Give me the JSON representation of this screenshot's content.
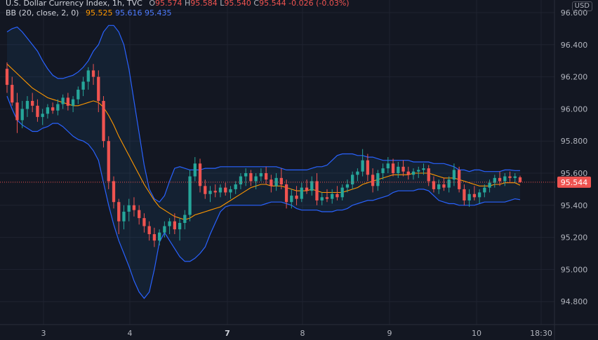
{
  "legend": {
    "symbol": "U.S. Dollar Currency Index, 1h, TVC",
    "open_label": "O",
    "open": "95.574",
    "high_label": "H",
    "high": "95.584",
    "low_label": "L",
    "low": "95.540",
    "close_label": "C",
    "close": "95.544",
    "change": "-0.026 (-0.03%)",
    "bb_label": "BB (20, close, 2, 0)",
    "bb_basis": "95.525",
    "bb_upper": "95.616",
    "bb_lower": "95.435"
  },
  "currency": "USD",
  "colors": {
    "background": "#131722",
    "up": "#26a69a",
    "down": "#ef5350",
    "basis": "#ff9800",
    "bands": "#2962ff",
    "fill": "rgba(33,150,243,0.08)",
    "grid": "#1f2330",
    "price_line": "#ef5350"
  },
  "chart_data": {
    "type": "candlestick",
    "ylim": [
      94.7,
      96.65
    ],
    "y_ticks": [
      "96.600",
      "96.400",
      "96.200",
      "96.000",
      "95.800",
      "95.600",
      "95.400",
      "95.200",
      "95.000",
      "94.800"
    ],
    "x_ticks": [
      "3",
      "4",
      "7",
      "8",
      "9",
      "10",
      "18:30"
    ],
    "x_tick_bold": [
      "7"
    ],
    "current_price": "95.544",
    "ohlc": [
      {
        "o": 96.25,
        "h": 96.29,
        "l": 96.1,
        "c": 96.15
      },
      {
        "o": 96.15,
        "h": 96.2,
        "l": 96.02,
        "c": 96.04
      },
      {
        "o": 96.04,
        "h": 96.1,
        "l": 95.85,
        "c": 95.93
      },
      {
        "o": 95.93,
        "h": 96.05,
        "l": 95.88,
        "c": 96.0
      },
      {
        "o": 96.0,
        "h": 96.08,
        "l": 95.95,
        "c": 96.05
      },
      {
        "o": 96.05,
        "h": 96.1,
        "l": 95.98,
        "c": 96.02
      },
      {
        "o": 96.02,
        "h": 96.06,
        "l": 95.92,
        "c": 95.95
      },
      {
        "o": 95.95,
        "h": 96.0,
        "l": 95.9,
        "c": 95.97
      },
      {
        "o": 95.97,
        "h": 96.03,
        "l": 95.94,
        "c": 96.01
      },
      {
        "o": 96.01,
        "h": 96.04,
        "l": 95.97,
        "c": 95.99
      },
      {
        "o": 95.99,
        "h": 96.06,
        "l": 95.96,
        "c": 96.03
      },
      {
        "o": 96.03,
        "h": 96.09,
        "l": 96.0,
        "c": 96.07
      },
      {
        "o": 96.07,
        "h": 96.1,
        "l": 95.99,
        "c": 96.02
      },
      {
        "o": 96.02,
        "h": 96.08,
        "l": 95.98,
        "c": 96.06
      },
      {
        "o": 96.06,
        "h": 96.14,
        "l": 96.03,
        "c": 96.12
      },
      {
        "o": 96.12,
        "h": 96.2,
        "l": 96.08,
        "c": 96.17
      },
      {
        "o": 96.17,
        "h": 96.26,
        "l": 96.12,
        "c": 96.24
      },
      {
        "o": 96.24,
        "h": 96.28,
        "l": 96.15,
        "c": 96.2
      },
      {
        "o": 96.2,
        "h": 96.24,
        "l": 95.98,
        "c": 96.05
      },
      {
        "o": 96.05,
        "h": 96.08,
        "l": 95.76,
        "c": 95.8
      },
      {
        "o": 95.8,
        "h": 95.83,
        "l": 95.5,
        "c": 95.55
      },
      {
        "o": 95.55,
        "h": 95.58,
        "l": 95.38,
        "c": 95.42
      },
      {
        "o": 95.42,
        "h": 95.44,
        "l": 95.22,
        "c": 95.3
      },
      {
        "o": 95.3,
        "h": 95.4,
        "l": 95.25,
        "c": 95.36
      },
      {
        "o": 95.36,
        "h": 95.44,
        "l": 95.3,
        "c": 95.4
      },
      {
        "o": 95.4,
        "h": 95.45,
        "l": 95.33,
        "c": 95.37
      },
      {
        "o": 95.37,
        "h": 95.4,
        "l": 95.28,
        "c": 95.32
      },
      {
        "o": 95.32,
        "h": 95.35,
        "l": 95.23,
        "c": 95.27
      },
      {
        "o": 95.27,
        "h": 95.3,
        "l": 95.18,
        "c": 95.22
      },
      {
        "o": 95.22,
        "h": 95.26,
        "l": 95.14,
        "c": 95.18
      },
      {
        "o": 95.18,
        "h": 95.25,
        "l": 95.15,
        "c": 95.23
      },
      {
        "o": 95.23,
        "h": 95.3,
        "l": 95.2,
        "c": 95.27
      },
      {
        "o": 95.27,
        "h": 95.32,
        "l": 95.22,
        "c": 95.3
      },
      {
        "o": 95.3,
        "h": 95.35,
        "l": 95.22,
        "c": 95.25
      },
      {
        "o": 95.25,
        "h": 95.32,
        "l": 95.18,
        "c": 95.29
      },
      {
        "o": 95.29,
        "h": 95.37,
        "l": 95.25,
        "c": 95.34
      },
      {
        "o": 95.34,
        "h": 95.62,
        "l": 95.3,
        "c": 95.58
      },
      {
        "o": 95.58,
        "h": 95.7,
        "l": 95.55,
        "c": 95.66
      },
      {
        "o": 95.66,
        "h": 95.69,
        "l": 95.48,
        "c": 95.52
      },
      {
        "o": 95.52,
        "h": 95.56,
        "l": 95.44,
        "c": 95.47
      },
      {
        "o": 95.47,
        "h": 95.52,
        "l": 95.42,
        "c": 95.49
      },
      {
        "o": 95.49,
        "h": 95.53,
        "l": 95.45,
        "c": 95.48
      },
      {
        "o": 95.48,
        "h": 95.53,
        "l": 95.45,
        "c": 95.51
      },
      {
        "o": 95.51,
        "h": 95.54,
        "l": 95.46,
        "c": 95.48
      },
      {
        "o": 95.48,
        "h": 95.52,
        "l": 95.44,
        "c": 95.5
      },
      {
        "o": 95.5,
        "h": 95.55,
        "l": 95.47,
        "c": 95.53
      },
      {
        "o": 95.53,
        "h": 95.6,
        "l": 95.5,
        "c": 95.58
      },
      {
        "o": 95.58,
        "h": 95.63,
        "l": 95.52,
        "c": 95.6
      },
      {
        "o": 95.6,
        "h": 95.62,
        "l": 95.52,
        "c": 95.55
      },
      {
        "o": 95.55,
        "h": 95.6,
        "l": 95.5,
        "c": 95.58
      },
      {
        "o": 95.58,
        "h": 95.63,
        "l": 95.55,
        "c": 95.6
      },
      {
        "o": 95.6,
        "h": 95.64,
        "l": 95.53,
        "c": 95.56
      },
      {
        "o": 95.56,
        "h": 95.59,
        "l": 95.48,
        "c": 95.52
      },
      {
        "o": 95.52,
        "h": 95.6,
        "l": 95.49,
        "c": 95.57
      },
      {
        "o": 95.57,
        "h": 95.63,
        "l": 95.5,
        "c": 95.53
      },
      {
        "o": 95.53,
        "h": 95.56,
        "l": 95.38,
        "c": 95.42
      },
      {
        "o": 95.42,
        "h": 95.5,
        "l": 95.38,
        "c": 95.46
      },
      {
        "o": 95.46,
        "h": 95.52,
        "l": 95.4,
        "c": 95.44
      },
      {
        "o": 95.44,
        "h": 95.54,
        "l": 95.42,
        "c": 95.51
      },
      {
        "o": 95.51,
        "h": 95.56,
        "l": 95.47,
        "c": 95.49
      },
      {
        "o": 95.49,
        "h": 95.58,
        "l": 95.46,
        "c": 95.55
      },
      {
        "o": 95.55,
        "h": 95.6,
        "l": 95.4,
        "c": 95.43
      },
      {
        "o": 95.43,
        "h": 95.48,
        "l": 95.4,
        "c": 95.45
      },
      {
        "o": 95.45,
        "h": 95.5,
        "l": 95.42,
        "c": 95.44
      },
      {
        "o": 95.44,
        "h": 95.5,
        "l": 95.41,
        "c": 95.47
      },
      {
        "o": 95.47,
        "h": 95.52,
        "l": 95.43,
        "c": 95.45
      },
      {
        "o": 95.45,
        "h": 95.53,
        "l": 95.43,
        "c": 95.51
      },
      {
        "o": 95.51,
        "h": 95.56,
        "l": 95.48,
        "c": 95.53
      },
      {
        "o": 95.53,
        "h": 95.61,
        "l": 95.5,
        "c": 95.59
      },
      {
        "o": 95.59,
        "h": 95.63,
        "l": 95.55,
        "c": 95.61
      },
      {
        "o": 95.61,
        "h": 95.75,
        "l": 95.58,
        "c": 95.68
      },
      {
        "o": 95.68,
        "h": 95.72,
        "l": 95.55,
        "c": 95.59
      },
      {
        "o": 95.59,
        "h": 95.63,
        "l": 95.48,
        "c": 95.52
      },
      {
        "o": 95.52,
        "h": 95.62,
        "l": 95.49,
        "c": 95.6
      },
      {
        "o": 95.6,
        "h": 95.66,
        "l": 95.56,
        "c": 95.63
      },
      {
        "o": 95.63,
        "h": 95.7,
        "l": 95.6,
        "c": 95.66
      },
      {
        "o": 95.66,
        "h": 95.69,
        "l": 95.58,
        "c": 95.6
      },
      {
        "o": 95.6,
        "h": 95.67,
        "l": 95.57,
        "c": 95.64
      },
      {
        "o": 95.64,
        "h": 95.68,
        "l": 95.58,
        "c": 95.61
      },
      {
        "o": 95.61,
        "h": 95.64,
        "l": 95.56,
        "c": 95.59
      },
      {
        "o": 95.59,
        "h": 95.63,
        "l": 95.56,
        "c": 95.61
      },
      {
        "o": 95.61,
        "h": 95.64,
        "l": 95.57,
        "c": 95.62
      },
      {
        "o": 95.62,
        "h": 95.66,
        "l": 95.59,
        "c": 95.63
      },
      {
        "o": 95.63,
        "h": 95.65,
        "l": 95.52,
        "c": 95.55
      },
      {
        "o": 95.55,
        "h": 95.58,
        "l": 95.48,
        "c": 95.5
      },
      {
        "o": 95.5,
        "h": 95.56,
        "l": 95.47,
        "c": 95.53
      },
      {
        "o": 95.53,
        "h": 95.57,
        "l": 95.49,
        "c": 95.51
      },
      {
        "o": 95.51,
        "h": 95.58,
        "l": 95.48,
        "c": 95.56
      },
      {
        "o": 95.56,
        "h": 95.66,
        "l": 95.52,
        "c": 95.62
      },
      {
        "o": 95.62,
        "h": 95.64,
        "l": 95.48,
        "c": 95.5
      },
      {
        "o": 95.5,
        "h": 95.53,
        "l": 95.4,
        "c": 95.43
      },
      {
        "o": 95.43,
        "h": 95.5,
        "l": 95.39,
        "c": 95.47
      },
      {
        "o": 95.47,
        "h": 95.52,
        "l": 95.43,
        "c": 95.45
      },
      {
        "o": 95.45,
        "h": 95.5,
        "l": 95.41,
        "c": 95.48
      },
      {
        "o": 95.48,
        "h": 95.53,
        "l": 95.45,
        "c": 95.51
      },
      {
        "o": 95.51,
        "h": 95.56,
        "l": 95.48,
        "c": 95.54
      },
      {
        "o": 95.54,
        "h": 95.59,
        "l": 95.51,
        "c": 95.57
      },
      {
        "o": 95.57,
        "h": 95.61,
        "l": 95.52,
        "c": 95.55
      },
      {
        "o": 95.55,
        "h": 95.6,
        "l": 95.52,
        "c": 95.58
      },
      {
        "o": 95.58,
        "h": 95.61,
        "l": 95.54,
        "c": 95.57
      },
      {
        "o": 95.57,
        "h": 95.6,
        "l": 95.54,
        "c": 95.58
      },
      {
        "o": 95.574,
        "h": 95.584,
        "l": 95.54,
        "c": 95.544
      }
    ],
    "bb_basis": [
      96.28,
      96.25,
      96.22,
      96.19,
      96.16,
      96.13,
      96.11,
      96.09,
      96.07,
      96.06,
      96.05,
      96.04,
      96.03,
      96.02,
      96.02,
      96.03,
      96.04,
      96.05,
      96.04,
      96.01,
      95.96,
      95.9,
      95.83,
      95.77,
      95.71,
      95.65,
      95.59,
      95.53,
      95.48,
      95.43,
      95.39,
      95.37,
      95.35,
      95.33,
      95.32,
      95.31,
      95.32,
      95.34,
      95.35,
      95.36,
      95.37,
      95.38,
      95.39,
      95.41,
      95.43,
      95.45,
      95.47,
      95.49,
      95.51,
      95.52,
      95.53,
      95.53,
      95.52,
      95.52,
      95.52,
      95.51,
      95.5,
      95.49,
      95.49,
      95.49,
      95.5,
      95.49,
      95.48,
      95.48,
      95.48,
      95.48,
      95.48,
      95.49,
      95.5,
      95.51,
      95.53,
      95.54,
      95.55,
      95.56,
      95.57,
      95.58,
      95.59,
      95.59,
      95.59,
      95.59,
      95.6,
      95.6,
      95.6,
      95.6,
      95.59,
      95.58,
      95.57,
      95.57,
      95.57,
      95.56,
      95.55,
      95.54,
      95.53,
      95.52,
      95.52,
      95.52,
      95.53,
      95.53,
      95.54,
      95.54,
      95.54,
      95.525
    ],
    "bb_upper": [
      96.48,
      96.5,
      96.51,
      96.48,
      96.44,
      96.4,
      96.36,
      96.3,
      96.25,
      96.21,
      96.19,
      96.19,
      96.2,
      96.21,
      96.23,
      96.26,
      96.3,
      96.36,
      96.4,
      96.48,
      96.52,
      96.52,
      96.48,
      96.4,
      96.25,
      96.05,
      95.85,
      95.65,
      95.5,
      95.44,
      95.42,
      95.46,
      95.55,
      95.63,
      95.64,
      95.63,
      95.62,
      95.62,
      95.62,
      95.63,
      95.63,
      95.63,
      95.64,
      95.64,
      95.64,
      95.64,
      95.64,
      95.64,
      95.64,
      95.64,
      95.64,
      95.64,
      95.64,
      95.64,
      95.63,
      95.62,
      95.62,
      95.62,
      95.62,
      95.62,
      95.63,
      95.64,
      95.64,
      95.65,
      95.68,
      95.71,
      95.72,
      95.72,
      95.72,
      95.71,
      95.71,
      95.7,
      95.7,
      95.69,
      95.68,
      95.68,
      95.68,
      95.68,
      95.68,
      95.68,
      95.67,
      95.67,
      95.67,
      95.67,
      95.66,
      95.66,
      95.66,
      95.65,
      95.64,
      95.62,
      95.62,
      95.61,
      95.62,
      95.62,
      95.61,
      95.61,
      95.61,
      95.61,
      95.62,
      95.62,
      95.616,
      95.616
    ],
    "bb_lower": [
      96.08,
      96.0,
      95.93,
      95.9,
      95.88,
      95.86,
      95.86,
      95.88,
      95.89,
      95.91,
      95.91,
      95.89,
      95.86,
      95.83,
      95.81,
      95.8,
      95.78,
      95.74,
      95.68,
      95.54,
      95.4,
      95.28,
      95.18,
      95.1,
      95.02,
      94.93,
      94.86,
      94.82,
      94.86,
      95.0,
      95.17,
      95.23,
      95.18,
      95.13,
      95.08,
      95.05,
      95.05,
      95.07,
      95.1,
      95.14,
      95.22,
      95.29,
      95.36,
      95.39,
      95.4,
      95.4,
      95.4,
      95.4,
      95.4,
      95.4,
      95.4,
      95.41,
      95.42,
      95.42,
      95.42,
      95.41,
      95.4,
      95.38,
      95.37,
      95.37,
      95.37,
      95.37,
      95.36,
      95.36,
      95.36,
      95.37,
      95.37,
      95.38,
      95.4,
      95.41,
      95.42,
      95.43,
      95.43,
      95.44,
      95.45,
      95.46,
      95.48,
      95.49,
      95.49,
      95.49,
      95.49,
      95.5,
      95.5,
      95.49,
      95.46,
      95.43,
      95.42,
      95.41,
      95.41,
      95.4,
      95.4,
      95.4,
      95.4,
      95.41,
      95.42,
      95.42,
      95.42,
      95.42,
      95.42,
      95.43,
      95.44,
      95.435
    ]
  }
}
